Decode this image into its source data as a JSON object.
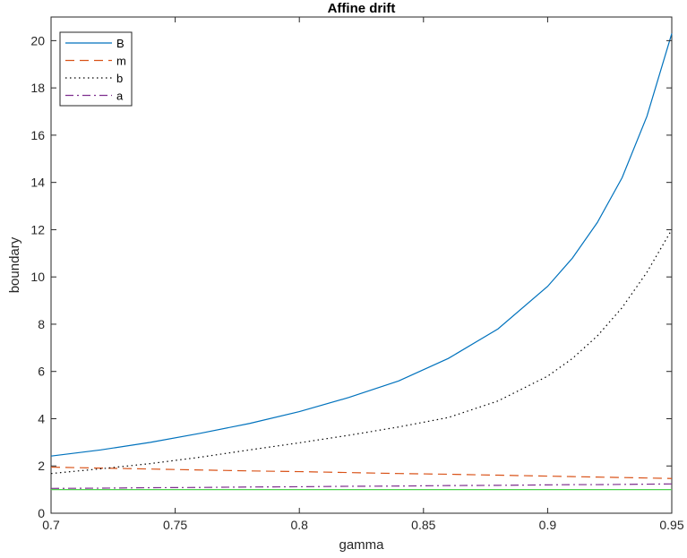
{
  "chart_data": {
    "type": "line",
    "title": "Affine drift",
    "xlabel": "gamma",
    "ylabel": "boundary",
    "xlim": [
      0.7,
      0.95
    ],
    "ylim": [
      0,
      21
    ],
    "xticks": [
      0.7,
      0.75,
      0.8,
      0.85,
      0.9,
      0.95
    ],
    "xtick_labels": [
      "0.7",
      "0.75",
      "0.8",
      "0.85",
      "0.9",
      "0.95"
    ],
    "yticks": [
      0,
      2,
      4,
      6,
      8,
      10,
      12,
      14,
      16,
      18,
      20
    ],
    "ytick_labels": [
      "0",
      "2",
      "4",
      "6",
      "8",
      "10",
      "12",
      "14",
      "16",
      "18",
      "20"
    ],
    "grid": false,
    "legend_position": "top-left",
    "x": [
      0.7,
      0.72,
      0.74,
      0.76,
      0.78,
      0.8,
      0.82,
      0.84,
      0.86,
      0.88,
      0.9,
      0.91,
      0.92,
      0.93,
      0.94,
      0.95
    ],
    "series": [
      {
        "name": "B",
        "color": "#0072BD",
        "dash": "solid",
        "values": [
          2.42,
          2.68,
          3.0,
          3.38,
          3.8,
          4.3,
          4.9,
          5.6,
          6.55,
          7.8,
          9.6,
          10.8,
          12.3,
          14.2,
          16.8,
          20.3
        ]
      },
      {
        "name": "m",
        "color": "#D95319",
        "dash": "dashed",
        "values": [
          1.95,
          1.91,
          1.87,
          1.83,
          1.79,
          1.76,
          1.72,
          1.68,
          1.65,
          1.61,
          1.57,
          1.55,
          1.53,
          1.51,
          1.49,
          1.47
        ]
      },
      {
        "name": "b",
        "color": "#000000",
        "dash": "dotted",
        "values": [
          1.68,
          1.88,
          2.1,
          2.37,
          2.68,
          2.98,
          3.3,
          3.65,
          4.05,
          4.75,
          5.8,
          6.55,
          7.5,
          8.7,
          10.2,
          12.0
        ]
      },
      {
        "name": "a",
        "color": "#7E2F8E",
        "dash": "dashdot",
        "values": [
          1.05,
          1.06,
          1.08,
          1.09,
          1.11,
          1.12,
          1.14,
          1.15,
          1.17,
          1.18,
          1.2,
          1.21,
          1.21,
          1.22,
          1.23,
          1.24
        ]
      },
      {
        "name": "",
        "color": "#4CD04C",
        "dash": "solid",
        "in_legend": false,
        "values": [
          1.0,
          1.0,
          1.0,
          1.0,
          1.0,
          1.0,
          1.0,
          1.0,
          1.0,
          1.0,
          1.0,
          1.0,
          1.0,
          1.0,
          1.0,
          1.0
        ]
      }
    ]
  }
}
